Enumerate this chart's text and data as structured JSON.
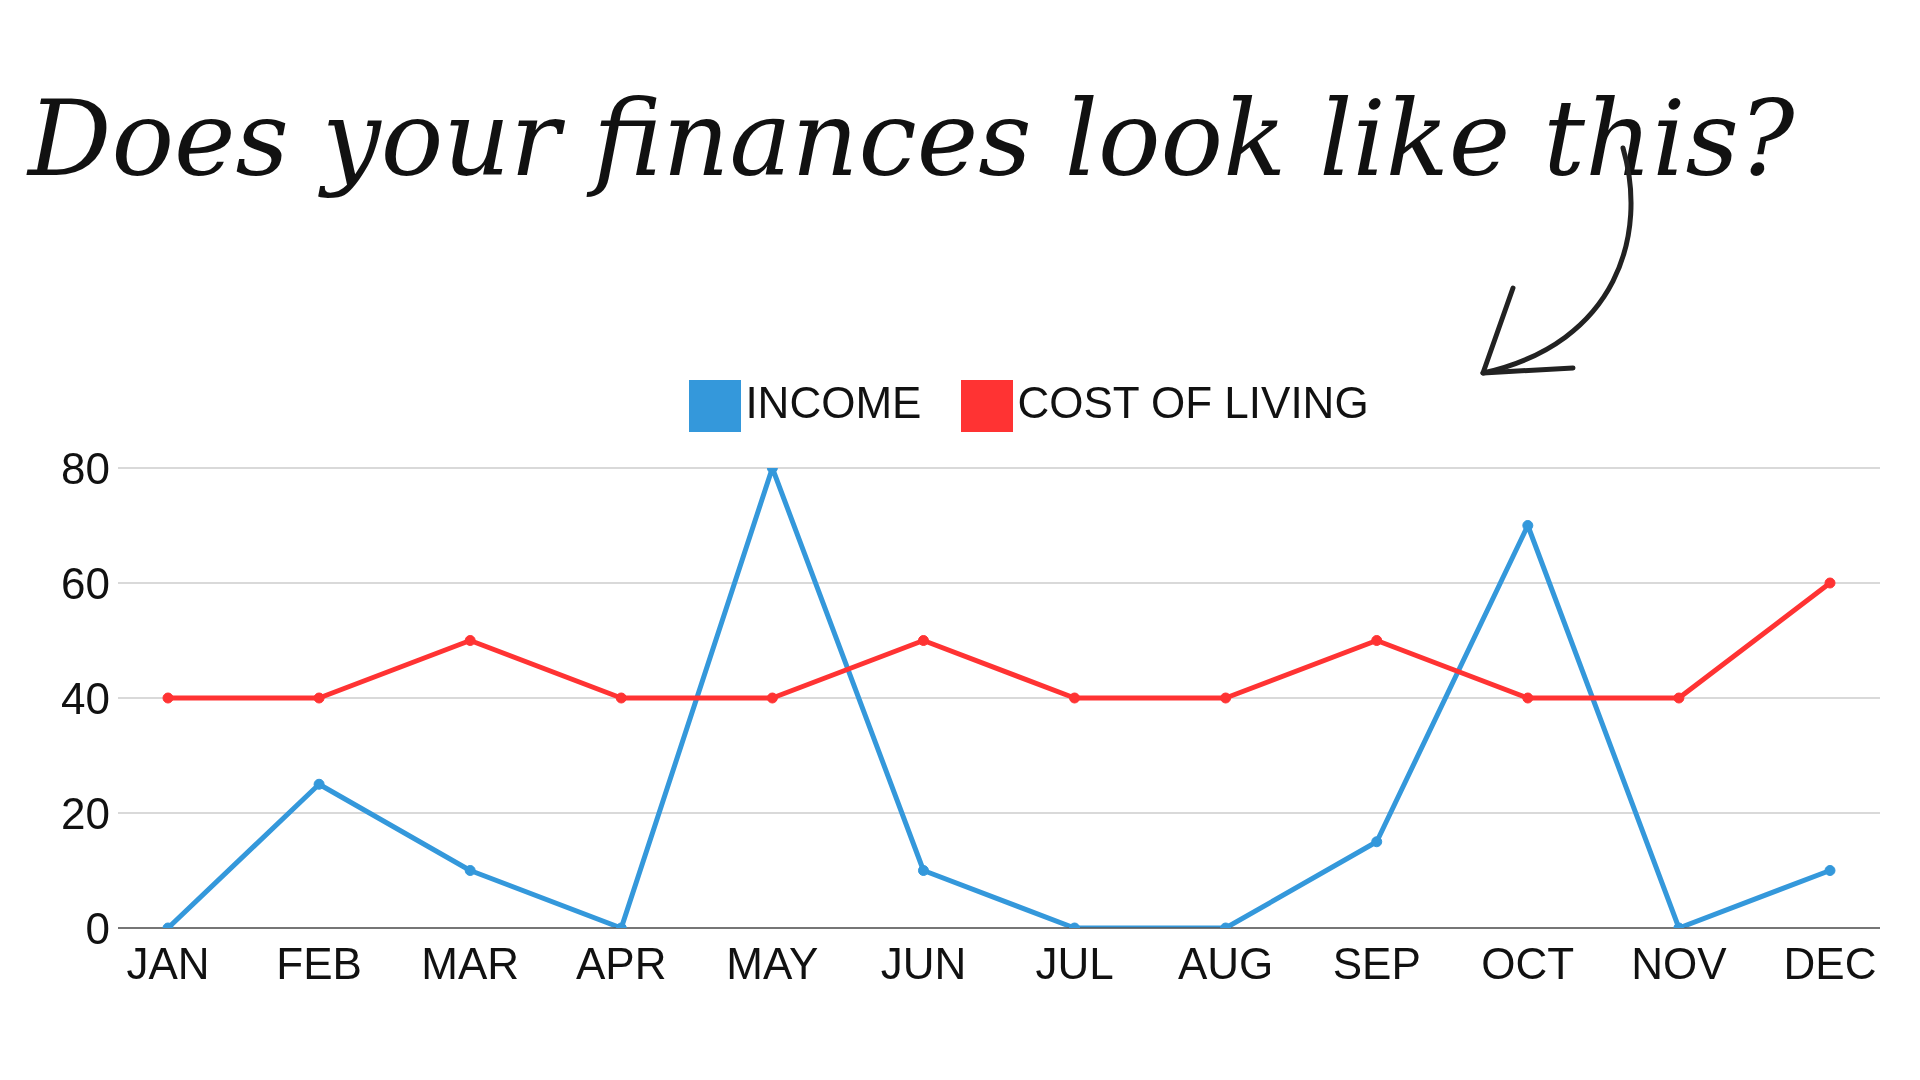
{
  "chart_data": {
    "type": "line",
    "title": "Does your finances look like this?",
    "categories": [
      "JAN",
      "FEB",
      "MAR",
      "APR",
      "MAY",
      "JUN",
      "JUL",
      "AUG",
      "SEP",
      "OCT",
      "NOV",
      "DEC"
    ],
    "series": [
      {
        "name": "INCOME",
        "color": "#3498db",
        "values": [
          0,
          25,
          10,
          0,
          80,
          10,
          0,
          0,
          15,
          70,
          0,
          10
        ]
      },
      {
        "name": "COST OF LIVING",
        "color": "#ff3333",
        "values": [
          40,
          40,
          50,
          40,
          40,
          50,
          40,
          40,
          50,
          40,
          40,
          60
        ]
      }
    ],
    "ylim": [
      0,
      80
    ],
    "yticks": [
      0,
      20,
      40,
      60,
      80
    ],
    "grid": "y",
    "legend": "top",
    "marker": "circle",
    "line_style": "solid"
  }
}
